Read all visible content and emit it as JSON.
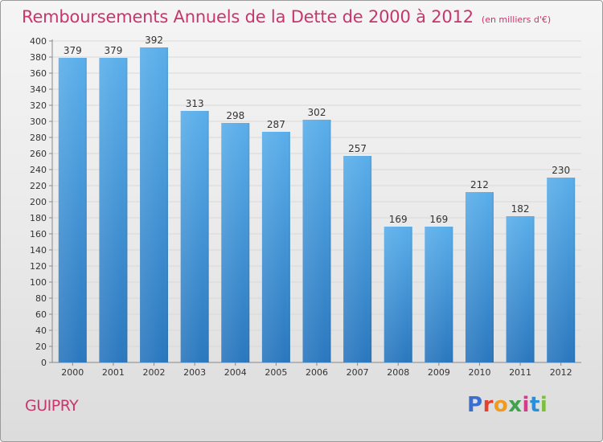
{
  "header": {
    "title": "Remboursements Annuels de la Dette de 2000 à 2012",
    "unit": "(en milliers d'€)"
  },
  "footer": {
    "commune": "GUIPRY",
    "brand": "Proxiti",
    "brand_colors": [
      "#3a6fcf",
      "#e3432e",
      "#f09a1e",
      "#3fa34d",
      "#d63a8c",
      "#2a8fd8",
      "#7cbf3a"
    ]
  },
  "colors": {
    "accent": "#c8366c",
    "bar": "#4f9fe0",
    "bar_top": "#5aaeea",
    "bar_bottom": "#2a77be",
    "grid": "#d8d8d8"
  },
  "chart_data": {
    "type": "bar",
    "title": "Remboursements Annuels de la Dette de 2000 à 2012",
    "subtitle": "(en milliers d'€)",
    "categories": [
      "2000",
      "2001",
      "2002",
      "2003",
      "2004",
      "2005",
      "2006",
      "2007",
      "2008",
      "2009",
      "2010",
      "2011",
      "2012"
    ],
    "values": [
      379,
      379,
      392,
      313,
      298,
      287,
      302,
      257,
      169,
      169,
      212,
      182,
      230
    ],
    "ylim": [
      0,
      400
    ],
    "ytick_step": 20,
    "grid": true,
    "legend": "none"
  }
}
